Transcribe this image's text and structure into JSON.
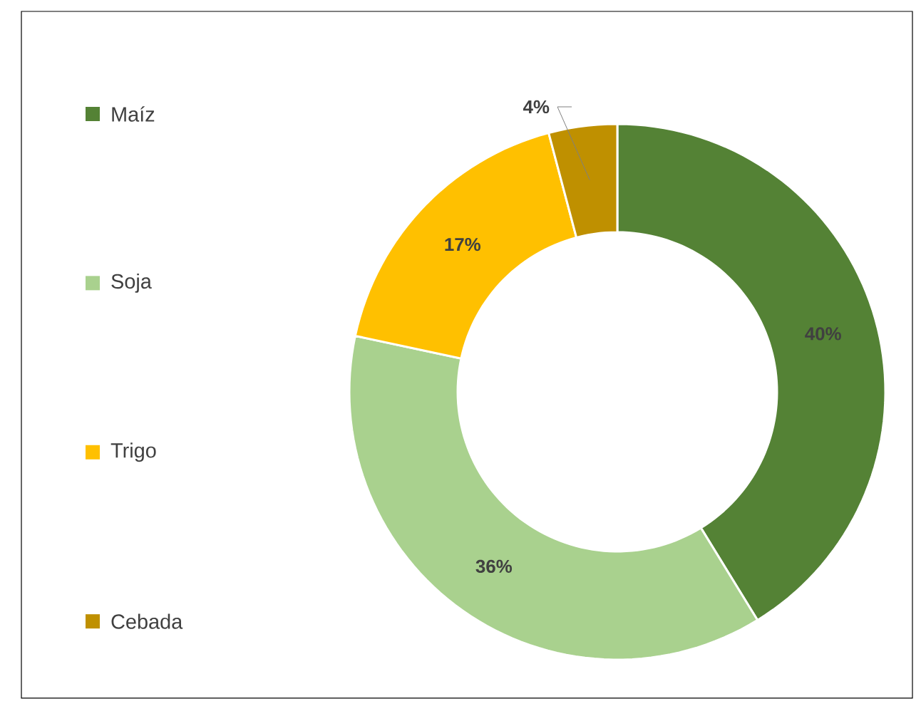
{
  "chart_data": {
    "type": "donut",
    "categories": [
      "Maíz",
      "Soja",
      "Trigo",
      "Cebada"
    ],
    "values": [
      40,
      36,
      17,
      4
    ],
    "colors": [
      "#548235",
      "#a9d18e",
      "#ffc000",
      "#bf9000"
    ],
    "value_labels": [
      "40%",
      "36%",
      "17%",
      "4%"
    ],
    "legend": "left"
  }
}
